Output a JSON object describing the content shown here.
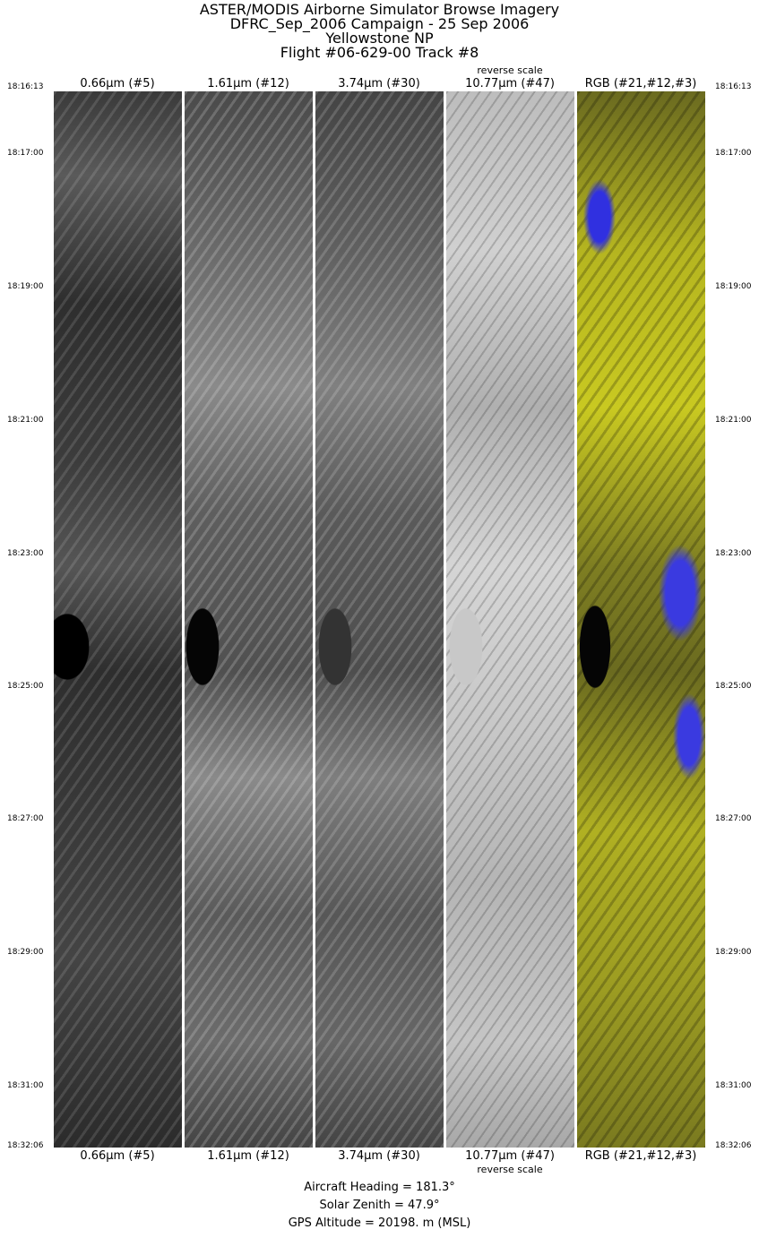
{
  "title_lines": [
    "ASTER/MODIS Airborne Simulator Browse Imagery",
    "DFRC_Sep_2006 Campaign - 25 Sep 2006",
    "Yellowstone NP",
    "Flight #06-629-00 Track #8"
  ],
  "bands": [
    {
      "label": "0.66µm (#5)"
    },
    {
      "label": "1.61µm (#12)"
    },
    {
      "label": "3.74µm (#30)"
    },
    {
      "label": "10.77µm (#47)",
      "note": "reverse scale"
    },
    {
      "label": "RGB (#21,#12,#3)"
    }
  ],
  "times": [
    "18:16:13",
    "18:17:00",
    "18:19:00",
    "18:21:00",
    "18:23:00",
    "18:25:00",
    "18:27:00",
    "18:29:00",
    "18:31:00",
    "18:32:06"
  ],
  "footer": {
    "heading": "Aircraft Heading =  181.3°",
    "solar_zenith": "Solar Zenith =   47.9°",
    "gps_altitude": "GPS Altitude =  20198. m (MSL)"
  }
}
